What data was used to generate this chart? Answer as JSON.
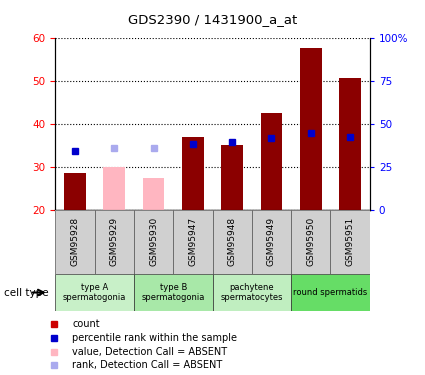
{
  "title": "GDS2390 / 1431900_a_at",
  "samples": [
    "GSM95928",
    "GSM95929",
    "GSM95930",
    "GSM95947",
    "GSM95948",
    "GSM95949",
    "GSM95950",
    "GSM95951"
  ],
  "count_values": [
    28.5,
    null,
    null,
    37.0,
    35.0,
    42.5,
    57.5,
    50.5
  ],
  "count_absent": [
    null,
    30.0,
    27.5,
    null,
    null,
    null,
    null,
    null
  ],
  "rank_values": [
    34.0,
    null,
    null,
    38.0,
    39.5,
    42.0,
    44.5,
    42.5
  ],
  "rank_absent": [
    null,
    36.0,
    36.0,
    null,
    null,
    null,
    null,
    null
  ],
  "ylim_left": [
    20,
    60
  ],
  "ylim_right": [
    0,
    100
  ],
  "left_ticks": [
    20,
    30,
    40,
    50,
    60
  ],
  "right_ticks": [
    0,
    25,
    50,
    75,
    100
  ],
  "right_tick_labels": [
    "0",
    "25",
    "50",
    "75",
    "100%"
  ],
  "color_count": "#8B0000",
  "color_count_absent": "#FFB6C1",
  "color_rank": "#0000CC",
  "color_rank_absent": "#AAAAEE",
  "cell_groups": [
    {
      "label": "type A\nspermatogonia",
      "start": 0,
      "end": 2
    },
    {
      "label": "type B\nspermatogonia",
      "start": 2,
      "end": 4
    },
    {
      "label": "pachytene\nspermatocytes",
      "start": 4,
      "end": 6
    },
    {
      "label": "round spermatids",
      "start": 6,
      "end": 8
    }
  ],
  "group_colors": [
    "#c8f0c8",
    "#a8e8a8",
    "#c0eec0",
    "#66dd66"
  ],
  "legend_items": [
    {
      "label": "count",
      "color": "#CC0000"
    },
    {
      "label": "percentile rank within the sample",
      "color": "#0000CC"
    },
    {
      "label": "value, Detection Call = ABSENT",
      "color": "#FFB6C1"
    },
    {
      "label": "rank, Detection Call = ABSENT",
      "color": "#AAAAEE"
    }
  ]
}
